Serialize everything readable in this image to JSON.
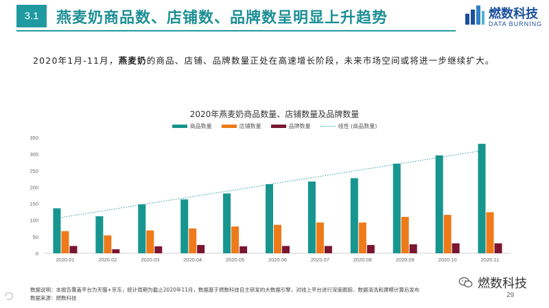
{
  "header": {
    "section_number": "3.1",
    "title": "燕麦奶商品数、店铺数、品牌数呈明显上升趋势"
  },
  "logo": {
    "name_cn": "燃数科技",
    "name_en": "DATA BURNING"
  },
  "subtitle": {
    "prefix": "2020年1月-11月，",
    "highlight": "燕麦奶",
    "suffix": "的商品、店铺、品牌数量正处在高速增长阶段，未来市场空间或将进一步继续扩大。"
  },
  "chart_data": {
    "type": "bar",
    "title": "2020年燕麦奶商品数量、店铺数量及品牌数量",
    "categories": [
      "2020.01",
      "2020.02",
      "2020.03",
      "2020.04",
      "2020.05",
      "2020.06",
      "2020.07",
      "2020.08",
      "2020.09",
      "2020.10",
      "2020.11"
    ],
    "series": [
      {
        "name": "商品数量",
        "color": "#17958f",
        "values": [
          136,
          112,
          148,
          163,
          181,
          209,
          217,
          227,
          271,
          296,
          331
        ]
      },
      {
        "name": "店铺数量",
        "color": "#ee7a1a",
        "values": [
          67,
          54,
          69,
          75,
          81,
          86,
          93,
          93,
          110,
          116,
          124
        ]
      },
      {
        "name": "品牌数量",
        "color": "#7a1630",
        "values": [
          22,
          12,
          21,
          25,
          21,
          22,
          22,
          25,
          27,
          30,
          30
        ]
      }
    ],
    "trendline": {
      "name": "线性 (商品数量)",
      "of_series": "商品数量",
      "color": "#1f9aa0",
      "style": "dotted"
    },
    "ylim": [
      0,
      350
    ],
    "yticks": [
      0,
      50,
      100,
      150,
      200,
      250,
      300,
      350
    ],
    "xlabel": "",
    "ylabel": "",
    "grid": false,
    "legend_position": "top"
  },
  "footnote": {
    "line1": "数据说明：本报告覆盖平台为天猫+京东，统计周期为截止2020年11月，数据基于燃数科技自主研发的大数据引擎，对线上平台进行深度跟踪、数据清洗和建模计算后发布",
    "line2": "数据来源：燃数科技"
  },
  "page_number": "29",
  "watermark": {
    "wechat_name": "燃数科技"
  },
  "colors": {
    "accent": "#1f9aa0",
    "brand_blue": "#1a4f9c"
  }
}
